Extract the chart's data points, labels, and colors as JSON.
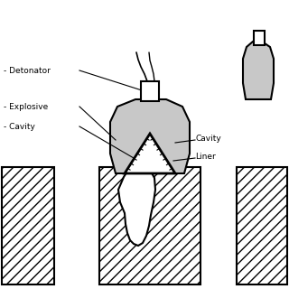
{
  "bg_color": "#ffffff",
  "line_color": "#000000",
  "explosive_color": "#c8c8c8",
  "labels": {
    "detonator": "- Detonator",
    "explosive": "- Explosive",
    "cavity": "- Cavity",
    "cavity2": "Cavity",
    "liner": "Liner"
  },
  "figsize": [
    3.2,
    3.2
  ],
  "dpi": 100
}
